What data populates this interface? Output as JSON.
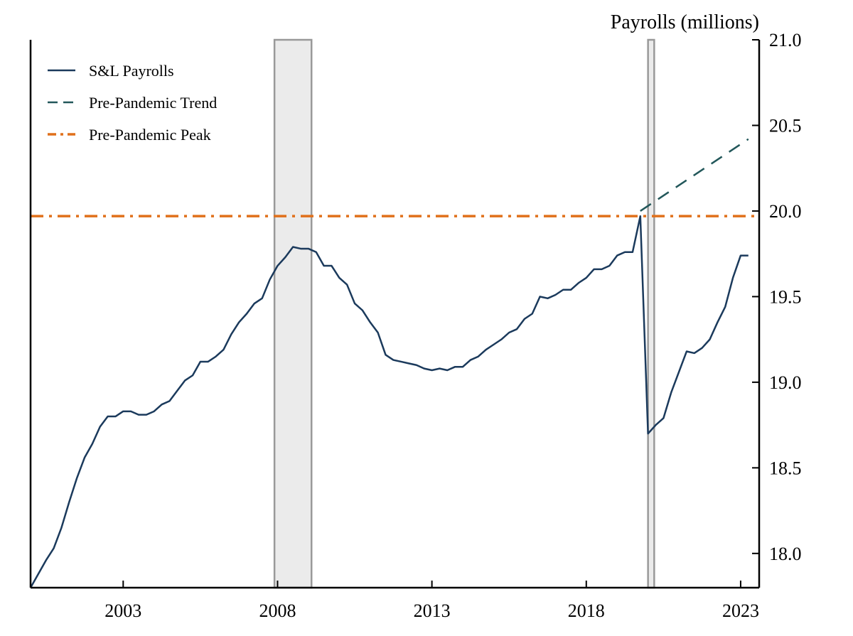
{
  "chart_data": {
    "type": "line",
    "title": "",
    "ylabel": "Payrolls (millions)",
    "xlabel": "",
    "xlim": [
      2000.0,
      2023.6
    ],
    "ylim": [
      17.8,
      21.0
    ],
    "x_ticks": [
      2003,
      2008,
      2013,
      2018,
      2023
    ],
    "x_tick_labels": [
      "2003",
      "2008",
      "2013",
      "2018",
      "2023"
    ],
    "y_ticks": [
      18.0,
      18.5,
      19.0,
      19.5,
      20.0,
      20.5,
      21.0
    ],
    "y_tick_labels": [
      "18.0",
      "18.5",
      "19.0",
      "19.5",
      "20.0",
      "20.5",
      "21.0"
    ],
    "y_axis_position": "right",
    "grid": false,
    "legend_position": "top-left",
    "recessions": [
      {
        "start": 2007.9,
        "end": 2009.1
      },
      {
        "start": 2020.0,
        "end": 2020.2
      }
    ],
    "series": [
      {
        "name": "S&L Payrolls",
        "color": "#1b3a5c",
        "style": "solid",
        "x": [
          2000.0,
          2000.25,
          2000.5,
          2000.75,
          2001.0,
          2001.25,
          2001.5,
          2001.75,
          2002.0,
          2002.25,
          2002.5,
          2002.75,
          2003.0,
          2003.25,
          2003.5,
          2003.75,
          2004.0,
          2004.25,
          2004.5,
          2004.75,
          2005.0,
          2005.25,
          2005.5,
          2005.75,
          2006.0,
          2006.25,
          2006.5,
          2006.75,
          2007.0,
          2007.25,
          2007.5,
          2007.75,
          2008.0,
          2008.25,
          2008.5,
          2008.75,
          2009.0,
          2009.25,
          2009.5,
          2009.75,
          2010.0,
          2010.25,
          2010.5,
          2010.75,
          2011.0,
          2011.25,
          2011.5,
          2011.75,
          2012.0,
          2012.25,
          2012.5,
          2012.75,
          2013.0,
          2013.25,
          2013.5,
          2013.75,
          2014.0,
          2014.25,
          2014.5,
          2014.75,
          2015.0,
          2015.25,
          2015.5,
          2015.75,
          2016.0,
          2016.25,
          2016.5,
          2016.75,
          2017.0,
          2017.25,
          2017.5,
          2017.75,
          2018.0,
          2018.25,
          2018.5,
          2018.75,
          2019.0,
          2019.25,
          2019.5,
          2019.75,
          2020.0,
          2020.25,
          2020.5,
          2020.75,
          2021.0,
          2021.25,
          2021.5,
          2021.75,
          2022.0,
          2022.25,
          2022.5,
          2022.75,
          2023.0,
          2023.25
        ],
        "y": [
          17.8,
          17.88,
          17.96,
          18.03,
          18.15,
          18.3,
          18.44,
          18.56,
          18.64,
          18.74,
          18.8,
          18.8,
          18.83,
          18.83,
          18.81,
          18.81,
          18.83,
          18.87,
          18.89,
          18.95,
          19.01,
          19.04,
          19.12,
          19.12,
          19.15,
          19.19,
          19.28,
          19.35,
          19.4,
          19.46,
          19.49,
          19.6,
          19.68,
          19.73,
          19.79,
          19.78,
          19.78,
          19.76,
          19.68,
          19.68,
          19.61,
          19.57,
          19.46,
          19.42,
          19.35,
          19.29,
          19.16,
          19.13,
          19.12,
          19.11,
          19.1,
          19.08,
          19.07,
          19.08,
          19.07,
          19.09,
          19.09,
          19.13,
          19.15,
          19.19,
          19.22,
          19.25,
          19.29,
          19.31,
          19.37,
          19.4,
          19.5,
          19.49,
          19.51,
          19.54,
          19.54,
          19.58,
          19.61,
          19.66,
          19.66,
          19.68,
          19.74,
          19.76,
          19.76,
          19.97,
          18.7,
          18.75,
          18.79,
          18.94,
          19.06,
          19.18,
          19.17,
          19.2,
          19.25,
          19.35,
          19.44,
          19.61,
          19.74,
          19.74
        ]
      },
      {
        "name": "Pre-Pandemic Trend",
        "color": "#22575a",
        "style": "dashed",
        "x": [
          2019.75,
          2023.25
        ],
        "y": [
          20.0,
          20.42
        ]
      },
      {
        "name": "Pre-Pandemic Peak",
        "color": "#e0701b",
        "style": "dashdot",
        "x": [
          2000.0,
          2023.6
        ],
        "y": [
          19.97,
          19.97
        ]
      }
    ]
  }
}
